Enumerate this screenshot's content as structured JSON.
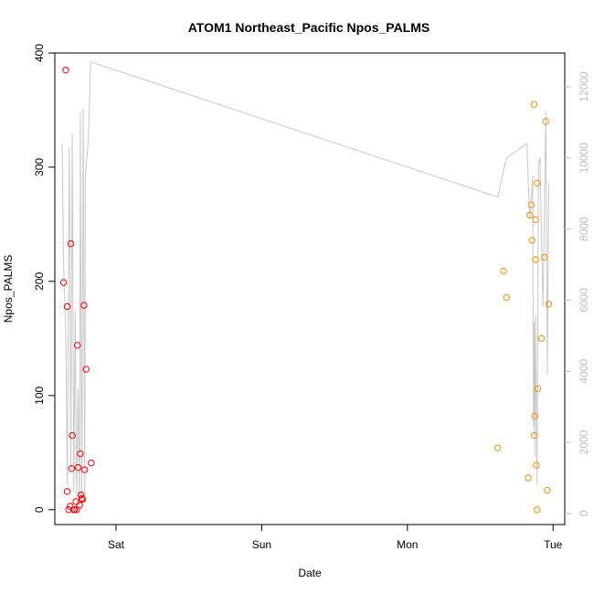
{
  "chart_data": {
    "type": "scatter",
    "title": "ATOM1 Northeast_Pacific Npos_PALMS",
    "xlabel": "Date",
    "ylabel": "Npos_PALMS",
    "x_ticks": [
      "Sat",
      "Sun",
      "Mon",
      "Tue"
    ],
    "x_unit": "days (Sat = 0)",
    "xlim": [
      -0.42,
      3.08
    ],
    "ylim": [
      -13,
      400
    ],
    "y_ticks": [
      0,
      100,
      200,
      300,
      400
    ],
    "y2_ticks": [
      0,
      2000,
      4000,
      6000,
      8000,
      10000,
      12000
    ],
    "y2lim": [
      -310,
      12950
    ],
    "grid": false,
    "series": [
      {
        "color": "#ff0000",
        "marker": "open-circle",
        "points": [
          [
            -0.36,
            199
          ],
          [
            -0.345,
            385
          ],
          [
            -0.335,
            178
          ],
          [
            -0.335,
            16
          ],
          [
            -0.325,
            0
          ],
          [
            -0.315,
            3
          ],
          [
            -0.31,
            233
          ],
          [
            -0.305,
            36
          ],
          [
            -0.3,
            65
          ],
          [
            -0.29,
            0
          ],
          [
            -0.285,
            0
          ],
          [
            -0.275,
            7
          ],
          [
            -0.27,
            0
          ],
          [
            -0.265,
            144
          ],
          [
            -0.26,
            37
          ],
          [
            -0.25,
            4
          ],
          [
            -0.245,
            49
          ],
          [
            -0.24,
            13
          ],
          [
            -0.235,
            10
          ],
          [
            -0.23,
            9
          ],
          [
            -0.22,
            179
          ],
          [
            -0.215,
            35
          ],
          [
            -0.205,
            123
          ],
          [
            -0.17,
            41
          ]
        ]
      },
      {
        "color": "#ff8c00",
        "marker": "open-circle",
        "points": [
          [
            2.62,
            54
          ],
          [
            2.66,
            209
          ],
          [
            2.68,
            186
          ],
          [
            2.83,
            28
          ],
          [
            2.84,
            258
          ],
          [
            2.85,
            267
          ],
          [
            2.855,
            236
          ],
          [
            2.87,
            65
          ],
          [
            2.87,
            355
          ],
          [
            2.875,
            82
          ],
          [
            2.88,
            219
          ],
          [
            2.88,
            254
          ],
          [
            2.885,
            39
          ],
          [
            2.89,
            286
          ],
          [
            2.89,
            0
          ],
          [
            2.895,
            106
          ],
          [
            2.92,
            150
          ],
          [
            2.94,
            221
          ],
          [
            2.95,
            340
          ],
          [
            2.96,
            17
          ],
          [
            2.97,
            180
          ]
        ]
      },
      {
        "color": "#c8c8c8",
        "type": "line",
        "axis": "right",
        "values": [
          [
            -0.37,
            10400
          ],
          [
            -0.36,
            7000
          ],
          [
            -0.345,
            5000
          ],
          [
            -0.335,
            800
          ],
          [
            -0.32,
            10300
          ],
          [
            -0.31,
            1200
          ],
          [
            -0.3,
            10700
          ],
          [
            -0.29,
            600
          ],
          [
            -0.28,
            5700
          ],
          [
            -0.27,
            400
          ],
          [
            -0.26,
            3500
          ],
          [
            -0.25,
            200
          ],
          [
            -0.245,
            11300
          ],
          [
            -0.235,
            300
          ],
          [
            -0.225,
            11400
          ],
          [
            -0.215,
            300
          ],
          [
            -0.21,
            9500
          ],
          [
            -0.19,
            10500
          ],
          [
            -0.175,
            12700
          ],
          [
            2.62,
            8900
          ],
          [
            2.68,
            10000
          ],
          [
            2.82,
            10400
          ],
          [
            2.84,
            8300
          ],
          [
            2.85,
            8800
          ],
          [
            2.86,
            9500
          ],
          [
            2.865,
            2400
          ],
          [
            2.87,
            5400
          ],
          [
            2.875,
            1600
          ],
          [
            2.88,
            5600
          ],
          [
            2.89,
            800
          ],
          [
            2.9,
            9800
          ],
          [
            2.91,
            10000
          ],
          [
            2.93,
            5800
          ],
          [
            2.95,
            11300
          ],
          [
            2.96,
            3900
          ],
          [
            2.97,
            9300
          ]
        ]
      }
    ]
  }
}
